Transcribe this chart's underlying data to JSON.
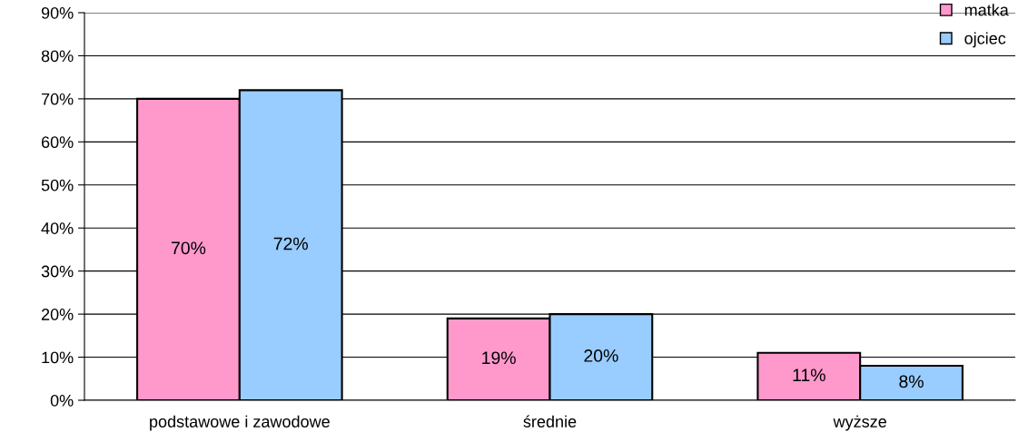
{
  "chart_data": {
    "type": "bar",
    "categories": [
      "podstawowe i zawodowe",
      "średnie",
      "wyższe"
    ],
    "series": [
      {
        "name": "matka",
        "color": "#ff99cc",
        "values": [
          70,
          19,
          11
        ],
        "value_labels": [
          "70%",
          "19%",
          "11%"
        ]
      },
      {
        "name": "ojciec",
        "color": "#99ccff",
        "values": [
          72,
          20,
          8
        ],
        "value_labels": [
          "72%",
          "20%",
          "8%"
        ]
      }
    ],
    "ylim": [
      0,
      90
    ],
    "yticks": [
      {
        "value": 0,
        "label": "0%"
      },
      {
        "value": 10,
        "label": "10%"
      },
      {
        "value": 20,
        "label": "20%"
      },
      {
        "value": 30,
        "label": "30%"
      },
      {
        "value": 40,
        "label": "40%"
      },
      {
        "value": 50,
        "label": "50%"
      },
      {
        "value": 60,
        "label": "60%"
      },
      {
        "value": 70,
        "label": "70%"
      },
      {
        "value": 80,
        "label": "80%"
      },
      {
        "value": 90,
        "label": "90%"
      }
    ],
    "grid": "y",
    "legend": "top right"
  }
}
